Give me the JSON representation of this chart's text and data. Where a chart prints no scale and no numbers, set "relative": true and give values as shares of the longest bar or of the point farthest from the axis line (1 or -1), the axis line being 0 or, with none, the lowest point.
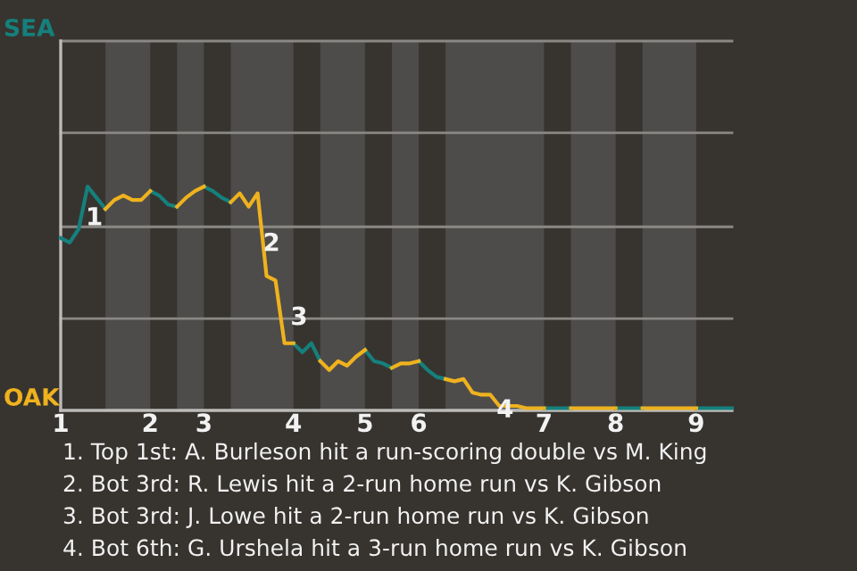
{
  "chart_data": {
    "type": "line",
    "relative": true,
    "categories": [
      "1",
      null,
      null,
      null,
      null,
      null,
      null,
      null,
      null,
      null,
      "2",
      null,
      null,
      null,
      null,
      null,
      "3",
      null,
      null,
      null,
      null,
      null,
      null,
      null,
      null,
      null,
      "4",
      null,
      null,
      null,
      null,
      null,
      null,
      null,
      "5",
      null,
      null,
      null,
      null,
      null,
      "6",
      null,
      null,
      null,
      null,
      null,
      null,
      null,
      null,
      null,
      null,
      null,
      null,
      null,
      "7",
      null,
      null,
      null,
      null,
      null,
      null,
      null,
      "8",
      null,
      null,
      null,
      null,
      null,
      null,
      null,
      null,
      "9",
      null,
      null,
      null,
      null
    ],
    "series": [
      {
        "name": "SEA",
        "color": "#15807c",
        "values": [
          0.77,
          0.75,
          0.81,
          1.0,
          0.95,
          0.9,
          null,
          null,
          null,
          null,
          0.98,
          0.96,
          0.92,
          0.91,
          null,
          null,
          1.0,
          0.98,
          0.95,
          0.93,
          null,
          null,
          null,
          null,
          null,
          null,
          0.3,
          0.26,
          0.3,
          0.22,
          null,
          null,
          null,
          null,
          0.27,
          0.22,
          0.21,
          0.19,
          null,
          null,
          0.22,
          0.18,
          0.15,
          0.14,
          null,
          null,
          null,
          null,
          null,
          null,
          null,
          null,
          null,
          null,
          0.01,
          0.01,
          0.01,
          0.01,
          null,
          null,
          null,
          null,
          0.01,
          0.01,
          0.01,
          0.01,
          null,
          null,
          null,
          null,
          null,
          0.01,
          0.01,
          0.01,
          0.01,
          0.01
        ]
      },
      {
        "name": "OAK",
        "color": "#efb21e",
        "values": [
          null,
          null,
          null,
          null,
          null,
          0.9,
          0.94,
          0.96,
          0.94,
          0.94,
          0.98,
          null,
          null,
          0.91,
          0.95,
          0.98,
          1.0,
          null,
          null,
          0.93,
          0.97,
          0.91,
          0.97,
          0.6,
          0.58,
          0.3,
          0.3,
          null,
          null,
          0.22,
          0.18,
          0.22,
          0.2,
          0.24,
          0.27,
          null,
          null,
          0.19,
          0.21,
          0.21,
          0.22,
          null,
          null,
          0.14,
          0.13,
          0.14,
          0.08,
          0.07,
          0.07,
          0.02,
          0.02,
          0.02,
          0.01,
          0.01,
          0.01,
          null,
          null,
          0.01,
          0.01,
          0.01,
          0.01,
          0.01,
          0.01,
          null,
          null,
          0.01,
          0.01,
          0.01,
          0.01,
          0.01,
          0.01,
          0.01,
          null,
          null,
          null,
          null
        ]
      }
    ],
    "ref_lines": [
      {
        "axis": "y",
        "value": 0.41,
        "color": "#8a8885"
      },
      {
        "axis": "y",
        "value": 0.82,
        "color": "#8a8885"
      },
      {
        "axis": "y",
        "value": 1.24,
        "color": "#8a8885"
      },
      {
        "axis": "y",
        "value": 1.65,
        "color": "#8a8885"
      }
    ],
    "annotations": [
      "1",
      "2",
      "3",
      "4",
      "1. Top 1st: A. Burleson hit a run-scoring double vs M. King",
      "2. Bot 3rd: R. Lewis hit a 2-run home run vs K. Gibson",
      "3. Bot 3rd: J. Lowe hit a 2-run home run vs K. Gibson",
      "4. Bot 6th: G. Urshela hit a 3-run home run vs K. Gibson"
    ]
  }
}
